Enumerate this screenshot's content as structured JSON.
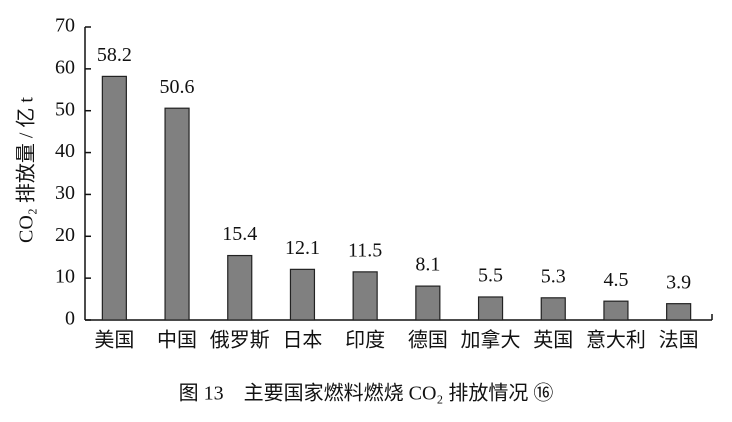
{
  "chart_data": {
    "type": "bar",
    "title": "图 13　主要国家燃料燃烧 CO₂ 排放情况 ⑯",
    "y_label": "CO₂ 排放量 / 亿 t",
    "categories": [
      "美国",
      "中国",
      "俄罗斯",
      "日本",
      "印度",
      "德国",
      "加拿大",
      "英国",
      "意大利",
      "法国"
    ],
    "values": [
      58.2,
      50.6,
      15.4,
      12.1,
      11.5,
      8.1,
      5.5,
      5.3,
      4.5,
      3.9
    ],
    "color": "#808080",
    "ylim": [
      0,
      70
    ],
    "yticks": [
      0,
      10,
      20,
      30,
      40,
      50,
      60,
      70
    ],
    "grid": false
  }
}
